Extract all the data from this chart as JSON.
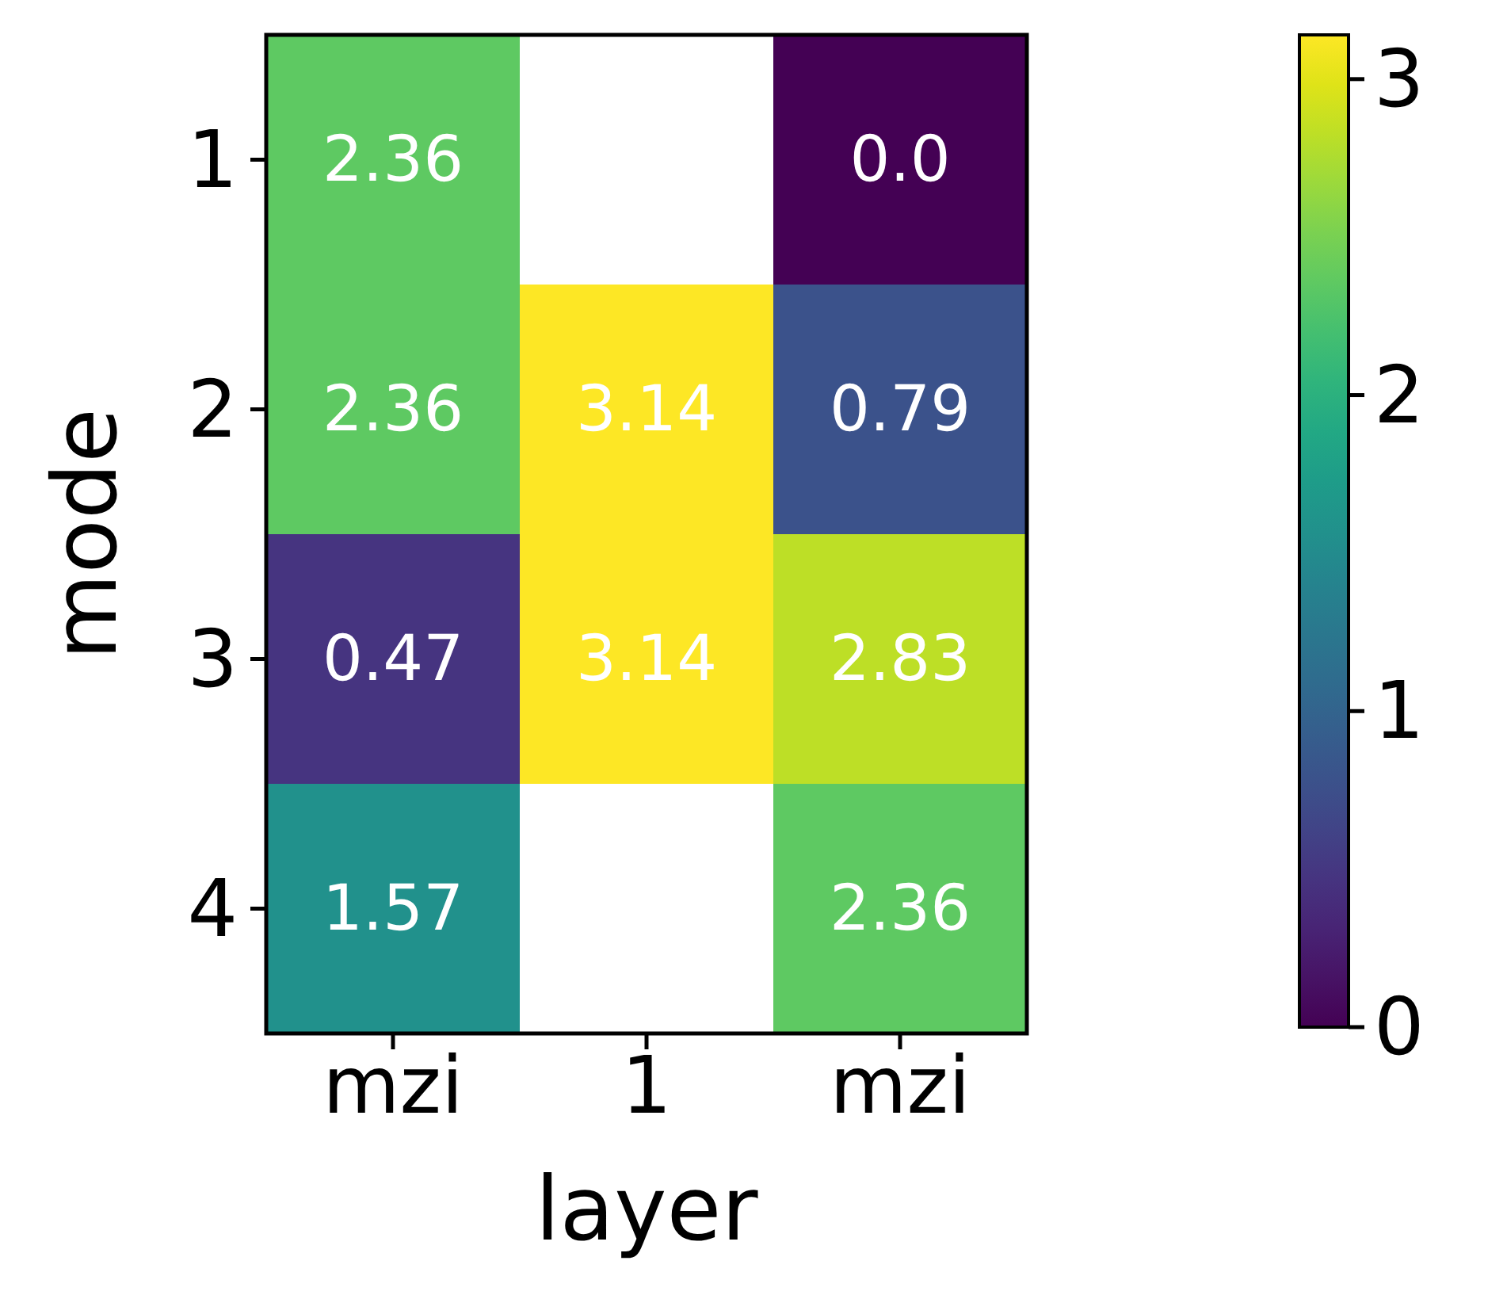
{
  "chart_data": {
    "type": "heatmap",
    "xlabel": "layer",
    "ylabel": "mode",
    "categories": [
      "mzi",
      "1",
      "mzi"
    ],
    "y_categories": [
      "1",
      "2",
      "3",
      "4"
    ],
    "cells": [
      [
        2.36,
        null,
        0.0
      ],
      [
        2.36,
        3.14,
        0.79
      ],
      [
        0.47,
        3.14,
        2.83
      ],
      [
        1.57,
        null,
        2.36
      ]
    ],
    "cell_labels": [
      [
        "2.36",
        null,
        "0.0"
      ],
      [
        "2.36",
        "3.14",
        "0.79"
      ],
      [
        "0.47",
        "3.14",
        "2.83"
      ],
      [
        "1.57",
        null,
        "2.36"
      ]
    ],
    "clim": [
      0,
      3.14
    ],
    "cticks": [
      0,
      1,
      2,
      3
    ]
  }
}
